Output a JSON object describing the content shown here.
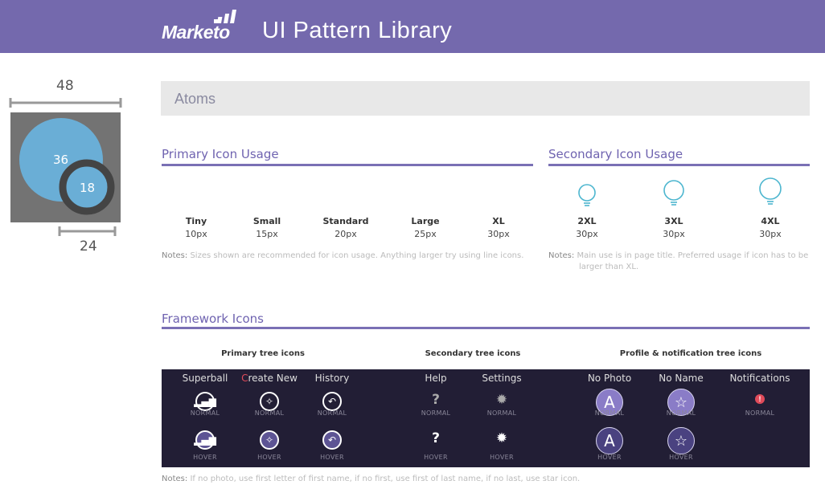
{
  "header": {
    "logo": "Marketo",
    "title": "UI Pattern Library"
  },
  "diagram": {
    "width_label": "48",
    "outer_label": "36",
    "inner_label": "18",
    "bottom_label": "24",
    "outer_color": "#6aaed6",
    "box_color": "#737373"
  },
  "atoms": {
    "title": "Atoms"
  },
  "primary": {
    "title": "Primary Icon Usage",
    "icon": "lightbulb-filled-icon",
    "color": "#4db6cf",
    "items": [
      {
        "label": "Tiny",
        "size": "10px"
      },
      {
        "label": "Small",
        "size": "15px"
      },
      {
        "label": "Standard",
        "size": "20px"
      },
      {
        "label": "Large",
        "size": "25px"
      },
      {
        "label": "XL",
        "size": "30px"
      }
    ],
    "notes_label": "Notes:",
    "notes": "Sizes shown are recommended for icon usage. Anything larger try using line icons."
  },
  "secondary": {
    "title": "Secondary Icon Usage",
    "icon": "lightbulb-outline-icon",
    "items": [
      {
        "label": "2XL",
        "size": "30px"
      },
      {
        "label": "3XL",
        "size": "30px"
      },
      {
        "label": "4XL",
        "size": "30px"
      }
    ],
    "notes_label": "Notes:",
    "notes": "Main use is in page title. Preferred usage if icon has to be larger than XL."
  },
  "framework": {
    "title": "Framework Icons",
    "groups": [
      "Primary tree icons",
      "Secondary tree icons",
      "Profile & notification tree icons"
    ],
    "normal": "NORMAL",
    "hover": "HOVER",
    "icons": [
      {
        "name": "Superball",
        "icon": "superball-icon"
      },
      {
        "name_first": "C",
        "name_rest": "reate New",
        "icon": "magic-wand-icon"
      },
      {
        "name": "History",
        "icon": "history-back-icon"
      },
      {
        "name": "Help",
        "icon": "help-question-icon"
      },
      {
        "name": "Settings",
        "icon": "gear-icon"
      },
      {
        "name": "No Photo",
        "icon": "avatar-letter-icon",
        "glyph": "A"
      },
      {
        "name": "No Name",
        "icon": "star-icon"
      },
      {
        "name": "Notifications",
        "icon": "alert-icon"
      }
    ],
    "accent_red": "#e04b5a",
    "avatar_color": "#8a7cc7",
    "notes_label": "Notes:",
    "notes": "If no photo, use first letter of first name, if no first, use first of last name, if no last, use star icon."
  }
}
